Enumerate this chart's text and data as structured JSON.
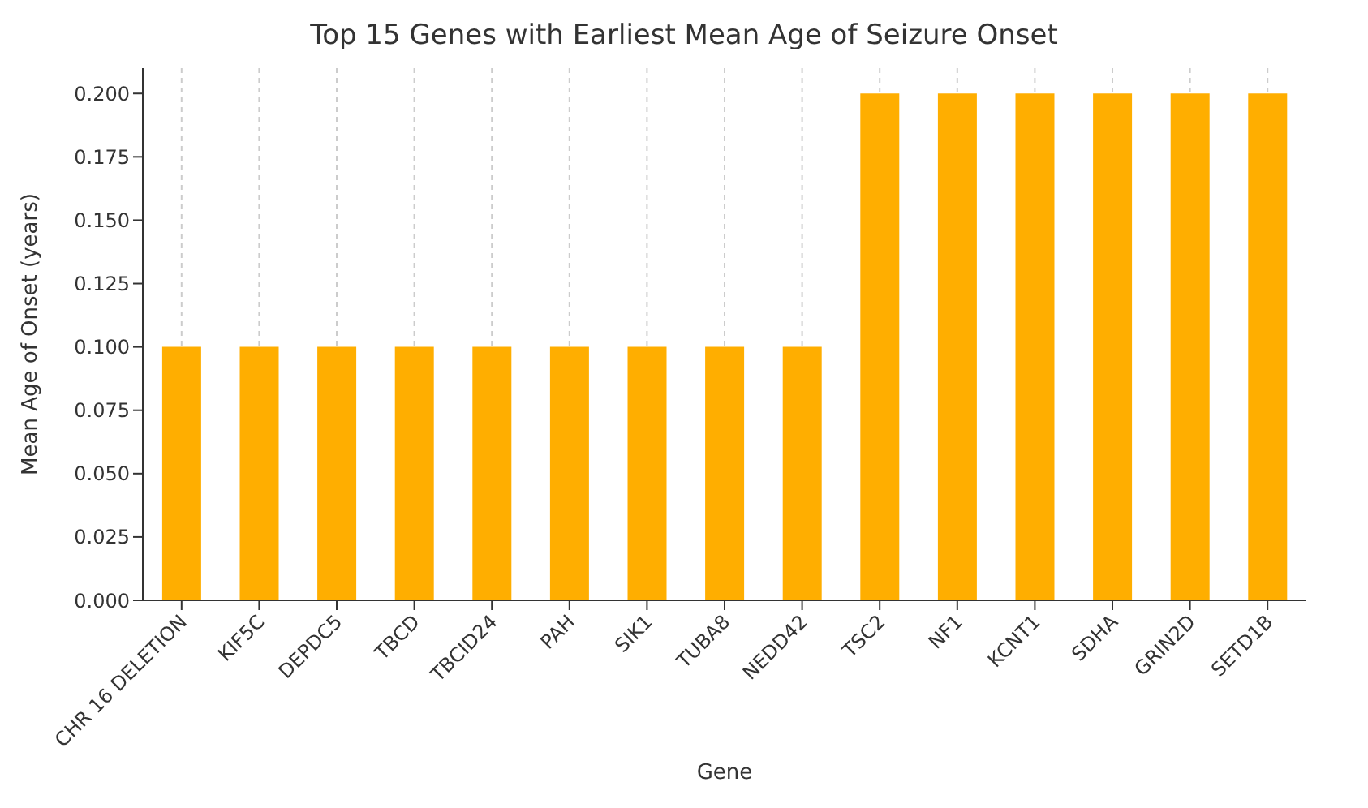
{
  "chart_data": {
    "type": "bar",
    "title": "Top 15 Genes with Earliest Mean Age of Seizure Onset",
    "xlabel": "Gene",
    "ylabel": "Mean Age of Onset (years)",
    "categories": [
      "CHR 16 DELETION",
      "KIF5C",
      "DEPDC5",
      "TBCD",
      "TBCID24",
      "PAH",
      "SIK1",
      "TUBA8",
      "NEDD42",
      "TSC2",
      "NF1",
      "KCNT1",
      "SDHA",
      "GRIN2D",
      "SETD1B"
    ],
    "values": [
      0.1,
      0.1,
      0.1,
      0.1,
      0.1,
      0.1,
      0.1,
      0.1,
      0.1,
      0.2,
      0.2,
      0.2,
      0.2,
      0.2,
      0.2
    ],
    "color": "#ffae00",
    "ylim": [
      0,
      0.21
    ],
    "yticks": [
      {
        "value": 0,
        "label": "0.000"
      },
      {
        "value": 0.025,
        "label": "0.025"
      },
      {
        "value": 0.05,
        "label": "0.050"
      },
      {
        "value": 0.075,
        "label": "0.075"
      },
      {
        "value": 0.1,
        "label": "0.100"
      },
      {
        "value": 0.125,
        "label": "0.125"
      },
      {
        "value": 0.15,
        "label": "0.150"
      },
      {
        "value": 0.175,
        "label": "0.175"
      },
      {
        "value": 0.2,
        "label": "0.200"
      }
    ],
    "grid": "x"
  }
}
